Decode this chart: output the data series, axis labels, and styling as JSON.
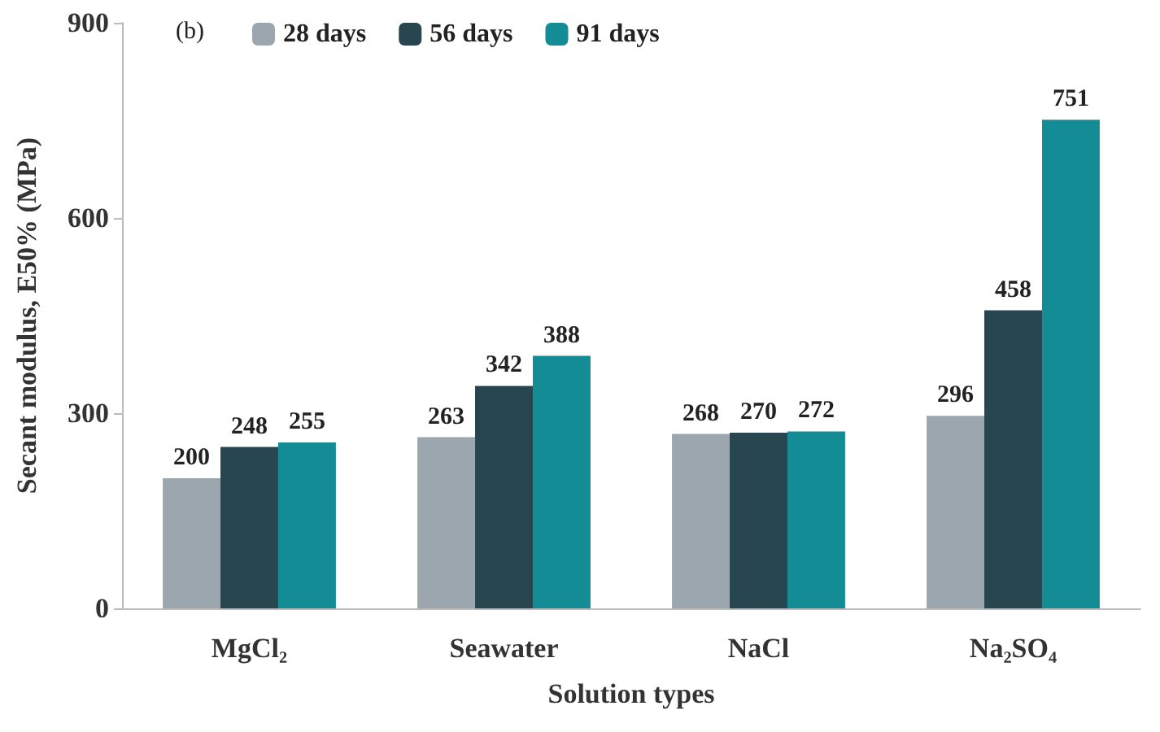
{
  "chart_data": {
    "type": "bar",
    "xlabel": "Solution types",
    "ylabel": "Secant modulus, E50% (MPa)",
    "annotations": [
      "(b)"
    ],
    "categories": [
      "MgCl₂",
      "Seawater",
      "NaCl",
      "Na₂SO₄"
    ],
    "series": [
      {
        "name": "28 days",
        "color": "#9ba6af",
        "values": [
          200,
          263,
          268,
          296
        ]
      },
      {
        "name": "56 days",
        "color": "#27464f",
        "values": [
          248,
          342,
          270,
          458
        ]
      },
      {
        "name": "91 days",
        "color": "#138c95",
        "values": [
          255,
          388,
          272,
          751
        ]
      }
    ],
    "ylim": [
      0,
      900
    ],
    "yticks": [
      0,
      300,
      600,
      900
    ],
    "grid": false,
    "legend": "top",
    "data_labels": true
  }
}
